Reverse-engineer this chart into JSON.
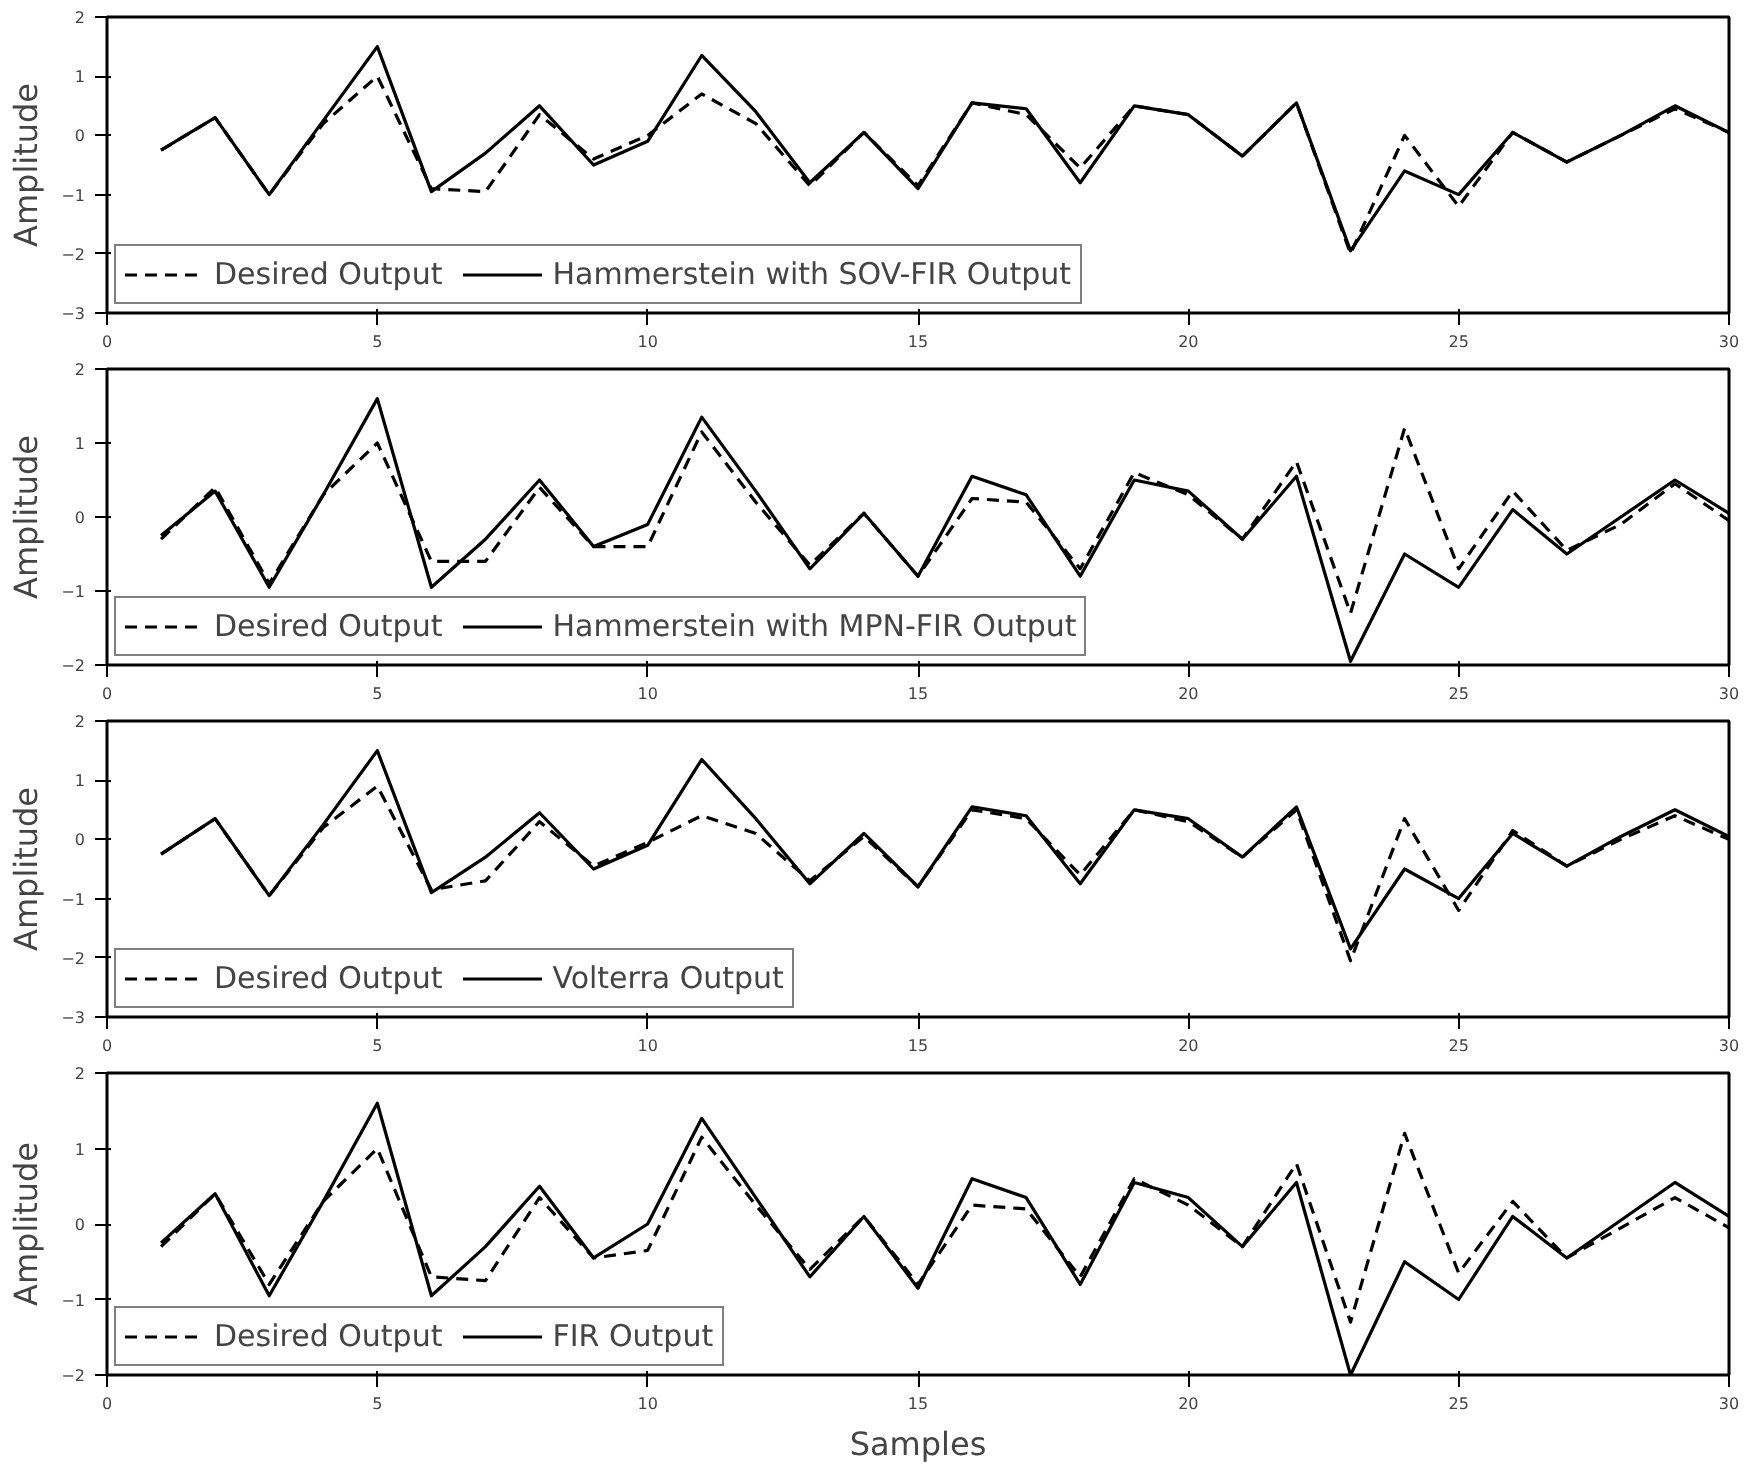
{
  "chart_data": [
    {
      "type": "line",
      "ylabel": "Amplitude",
      "x": [
        1,
        2,
        3,
        4,
        5,
        6,
        7,
        8,
        9,
        10,
        11,
        12,
        13,
        14,
        15,
        16,
        17,
        18,
        19,
        20,
        21,
        22,
        23,
        24,
        25,
        26,
        27,
        28,
        29,
        30
      ],
      "xlim": [
        0,
        30
      ],
      "xticks": [
        0,
        5,
        10,
        15,
        20,
        25,
        30
      ],
      "ylim": [
        -3,
        2
      ],
      "yticks": [
        -3,
        -2,
        -1,
        0,
        1,
        2
      ],
      "grid": false,
      "legend": "bottom left",
      "series": [
        {
          "name": "Desired Output",
          "color": "#000000",
          "line_style": "dashed",
          "values": [
            -0.25,
            0.3,
            -1.0,
            0.2,
            1.0,
            -0.9,
            -0.95,
            0.35,
            -0.4,
            0.0,
            0.7,
            0.2,
            -0.85,
            0.05,
            -0.85,
            0.55,
            0.35,
            -0.55,
            0.5,
            0.35,
            -0.35,
            0.55,
            -2.0,
            0.0,
            -1.2,
            0.05,
            -0.45,
            0.0,
            0.45,
            0.05
          ]
        },
        {
          "name": "Hammerstein with SOV-FIR Output",
          "color": "#000000",
          "line_style": "solid",
          "values": [
            -0.25,
            0.3,
            -1.0,
            0.25,
            1.5,
            -0.95,
            -0.3,
            0.5,
            -0.5,
            -0.1,
            1.35,
            0.4,
            -0.8,
            0.05,
            -0.9,
            0.55,
            0.45,
            -0.8,
            0.5,
            0.35,
            -0.35,
            0.55,
            -1.95,
            -0.6,
            -1.0,
            0.05,
            -0.45,
            0.0,
            0.5,
            0.05
          ]
        }
      ]
    },
    {
      "type": "line",
      "ylabel": "Amplitude",
      "x": [
        1,
        2,
        3,
        4,
        5,
        6,
        7,
        8,
        9,
        10,
        11,
        12,
        13,
        14,
        15,
        16,
        17,
        18,
        19,
        20,
        21,
        22,
        23,
        24,
        25,
        26,
        27,
        28,
        29,
        30
      ],
      "xlim": [
        0,
        30
      ],
      "xticks": [
        0,
        5,
        10,
        15,
        20,
        25,
        30
      ],
      "ylim": [
        -2,
        2
      ],
      "yticks": [
        -2,
        -1,
        0,
        1,
        2
      ],
      "grid": false,
      "legend": "bottom left",
      "series": [
        {
          "name": "Desired Output",
          "color": "#000000",
          "line_style": "dashed",
          "values": [
            -0.3,
            0.4,
            -0.9,
            0.3,
            1.0,
            -0.6,
            -0.6,
            0.4,
            -0.4,
            -0.4,
            1.15,
            0.2,
            -0.65,
            0.05,
            -0.8,
            0.25,
            0.2,
            -0.7,
            0.6,
            0.3,
            -0.3,
            0.75,
            -1.3,
            1.2,
            -0.7,
            0.35,
            -0.45,
            -0.1,
            0.45,
            -0.05
          ]
        },
        {
          "name": "Hammerstein with MPN-FIR Output",
          "color": "#000000",
          "line_style": "solid",
          "values": [
            -0.25,
            0.35,
            -0.95,
            0.3,
            1.6,
            -0.95,
            -0.3,
            0.5,
            -0.4,
            -0.1,
            1.35,
            0.35,
            -0.7,
            0.05,
            -0.8,
            0.55,
            0.3,
            -0.8,
            0.5,
            0.35,
            -0.3,
            0.55,
            -1.95,
            -0.5,
            -0.95,
            0.1,
            -0.5,
            0.0,
            0.5,
            0.05
          ]
        }
      ]
    },
    {
      "type": "line",
      "ylabel": "Amplitude",
      "x": [
        1,
        2,
        3,
        4,
        5,
        6,
        7,
        8,
        9,
        10,
        11,
        12,
        13,
        14,
        15,
        16,
        17,
        18,
        19,
        20,
        21,
        22,
        23,
        24,
        25,
        26,
        27,
        28,
        29,
        30
      ],
      "xlim": [
        0,
        30
      ],
      "xticks": [
        0,
        5,
        10,
        15,
        20,
        25,
        30
      ],
      "ylim": [
        -3,
        2
      ],
      "yticks": [
        -3,
        -2,
        -1,
        0,
        1,
        2
      ],
      "grid": false,
      "legend": "bottom left",
      "series": [
        {
          "name": "Desired Output",
          "color": "#000000",
          "line_style": "dashed",
          "values": [
            -0.25,
            0.35,
            -0.95,
            0.2,
            0.9,
            -0.85,
            -0.7,
            0.3,
            -0.45,
            -0.05,
            0.4,
            0.1,
            -0.7,
            0.05,
            -0.8,
            0.5,
            0.35,
            -0.6,
            0.5,
            0.3,
            -0.3,
            0.5,
            -2.05,
            0.35,
            -1.2,
            0.15,
            -0.45,
            0.0,
            0.4,
            0.0
          ]
        },
        {
          "name": "Volterra Output",
          "color": "#000000",
          "line_style": "solid",
          "values": [
            -0.25,
            0.35,
            -0.95,
            0.25,
            1.5,
            -0.9,
            -0.3,
            0.45,
            -0.5,
            -0.1,
            1.35,
            0.35,
            -0.75,
            0.1,
            -0.8,
            0.55,
            0.4,
            -0.75,
            0.5,
            0.35,
            -0.3,
            0.55,
            -1.85,
            -0.5,
            -1.0,
            0.1,
            -0.45,
            0.05,
            0.5,
            0.05
          ]
        }
      ]
    },
    {
      "type": "line",
      "ylabel": "Amplitude",
      "xlabel": "Samples",
      "x": [
        1,
        2,
        3,
        4,
        5,
        6,
        7,
        8,
        9,
        10,
        11,
        12,
        13,
        14,
        15,
        16,
        17,
        18,
        19,
        20,
        21,
        22,
        23,
        24,
        25,
        26,
        27,
        28,
        29,
        30
      ],
      "xlim": [
        0,
        30
      ],
      "xticks": [
        0,
        5,
        10,
        15,
        20,
        25,
        30
      ],
      "ylim": [
        -2,
        2
      ],
      "yticks": [
        -2,
        -1,
        0,
        1,
        2
      ],
      "grid": false,
      "legend": "bottom left",
      "series": [
        {
          "name": "Desired Output",
          "color": "#000000",
          "line_style": "dashed",
          "values": [
            -0.3,
            0.4,
            -0.8,
            0.3,
            1.0,
            -0.7,
            -0.75,
            0.35,
            -0.45,
            -0.35,
            1.15,
            0.25,
            -0.6,
            0.1,
            -0.8,
            0.25,
            0.2,
            -0.7,
            0.6,
            0.25,
            -0.3,
            0.8,
            -1.3,
            1.2,
            -0.65,
            0.3,
            -0.45,
            -0.05,
            0.35,
            -0.05
          ]
        },
        {
          "name": "FIR Output",
          "color": "#000000",
          "line_style": "solid",
          "values": [
            -0.25,
            0.4,
            -0.95,
            0.3,
            1.6,
            -0.95,
            -0.3,
            0.5,
            -0.45,
            0.0,
            1.4,
            0.35,
            -0.7,
            0.1,
            -0.85,
            0.6,
            0.35,
            -0.8,
            0.55,
            0.35,
            -0.3,
            0.55,
            -2.0,
            -0.5,
            -1.0,
            0.1,
            -0.45,
            0.05,
            0.55,
            0.1
          ]
        }
      ]
    }
  ]
}
